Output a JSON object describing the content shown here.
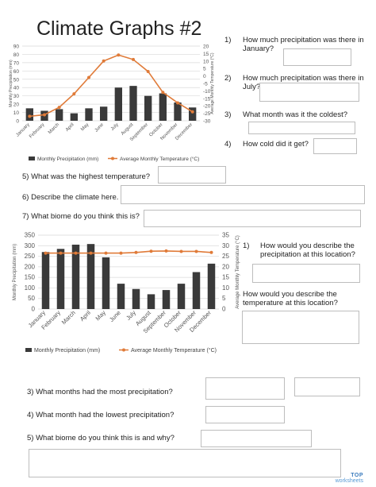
{
  "title": "Climate Graphs #2",
  "brand": {
    "line1": "TOP",
    "line2": "worksheets"
  },
  "chart_data": [
    {
      "type": "bar",
      "categories": [
        "January",
        "February",
        "March",
        "April",
        "May",
        "June",
        "July",
        "August",
        "September",
        "October",
        "November",
        "December"
      ],
      "series": [
        {
          "name": "Monthly Precipitation  (mm)",
          "values": [
            15,
            12,
            14,
            9,
            15,
            17,
            40,
            42,
            30,
            33,
            22,
            16
          ],
          "axis": "left",
          "color": "#3a3a3a"
        },
        {
          "name": "Average Monthly  Temperature (°C)",
          "values": [
            -27,
            -26,
            -21,
            -12,
            -1,
            10,
            14,
            11,
            3,
            -11,
            -18,
            -24
          ],
          "axis": "right",
          "type": "line",
          "color": "#e07b39"
        }
      ],
      "ylabel": "Monthly Precipitation (mm)",
      "y2label": "Average Monthly Temperature (°C)",
      "ylim": [
        0,
        90
      ],
      "y2lim": [
        -30,
        20
      ],
      "yticks": [
        "0",
        "10",
        "20",
        "30",
        "40",
        "50",
        "60",
        "70",
        "80",
        "90"
      ],
      "y2ticks": [
        "-30",
        "-25",
        "-20",
        "-15",
        "-10",
        "-5",
        "0",
        "5",
        "10",
        "15",
        "20"
      ],
      "grid": true,
      "legend": "bottom"
    },
    {
      "type": "bar",
      "categories": [
        "January",
        "February",
        "March",
        "April",
        "May",
        "June",
        "July",
        "August",
        "September",
        "October",
        "November",
        "December"
      ],
      "series": [
        {
          "name": "Monthly Precipitation  (mm)",
          "values": [
            270,
            285,
            305,
            308,
            245,
            120,
            95,
            70,
            90,
            120,
            175,
            215
          ],
          "axis": "left",
          "color": "#3a3a3a"
        },
        {
          "name": "Average Monthly  Temperature (°C)",
          "values": [
            26.5,
            26.5,
            26.5,
            26.5,
            26.5,
            26.5,
            26.8,
            27.4,
            27.5,
            27.3,
            27.3,
            26.8
          ],
          "axis": "right",
          "type": "line",
          "color": "#e07b39"
        }
      ],
      "ylabel": "Monthly Precipitation (mm)",
      "y2label": "Average Monthly Temperature (°C)",
      "ylim": [
        0,
        350
      ],
      "y2lim": [
        0,
        35
      ],
      "yticks": [
        "0",
        "50",
        "100",
        "150",
        "200",
        "250",
        "300",
        "350"
      ],
      "y2ticks": [
        "0",
        "5",
        "10",
        "15",
        "20",
        "25",
        "30",
        "35"
      ],
      "grid": true,
      "legend": "bottom"
    }
  ],
  "right_questions": [
    {
      "num": "1)",
      "text": "How much precipitation was there in January?"
    },
    {
      "num": "2)",
      "text": "How much precipitation was there in July?"
    },
    {
      "num": "3)",
      "text": "What month was it the coldest?"
    },
    {
      "num": "4)",
      "text": "How cold did it get?"
    }
  ],
  "mid_questions": [
    {
      "text": "5) What was the highest temperature?"
    },
    {
      "text": "6) Describe the climate here."
    },
    {
      "text": "7) What biome do you think this is?"
    }
  ],
  "right2_questions": [
    {
      "num": "1)",
      "text": "How would you describe the precipitation at this location?"
    },
    {
      "num": "2)",
      "text": "How would you describe the temperature at this location?"
    }
  ],
  "bottom_questions": [
    {
      "text": "3) What months had the most precipitation?"
    },
    {
      "text": "4) What month had the lowest precipitation?"
    },
    {
      "text": "5) What biome do you think this is and why?"
    }
  ]
}
